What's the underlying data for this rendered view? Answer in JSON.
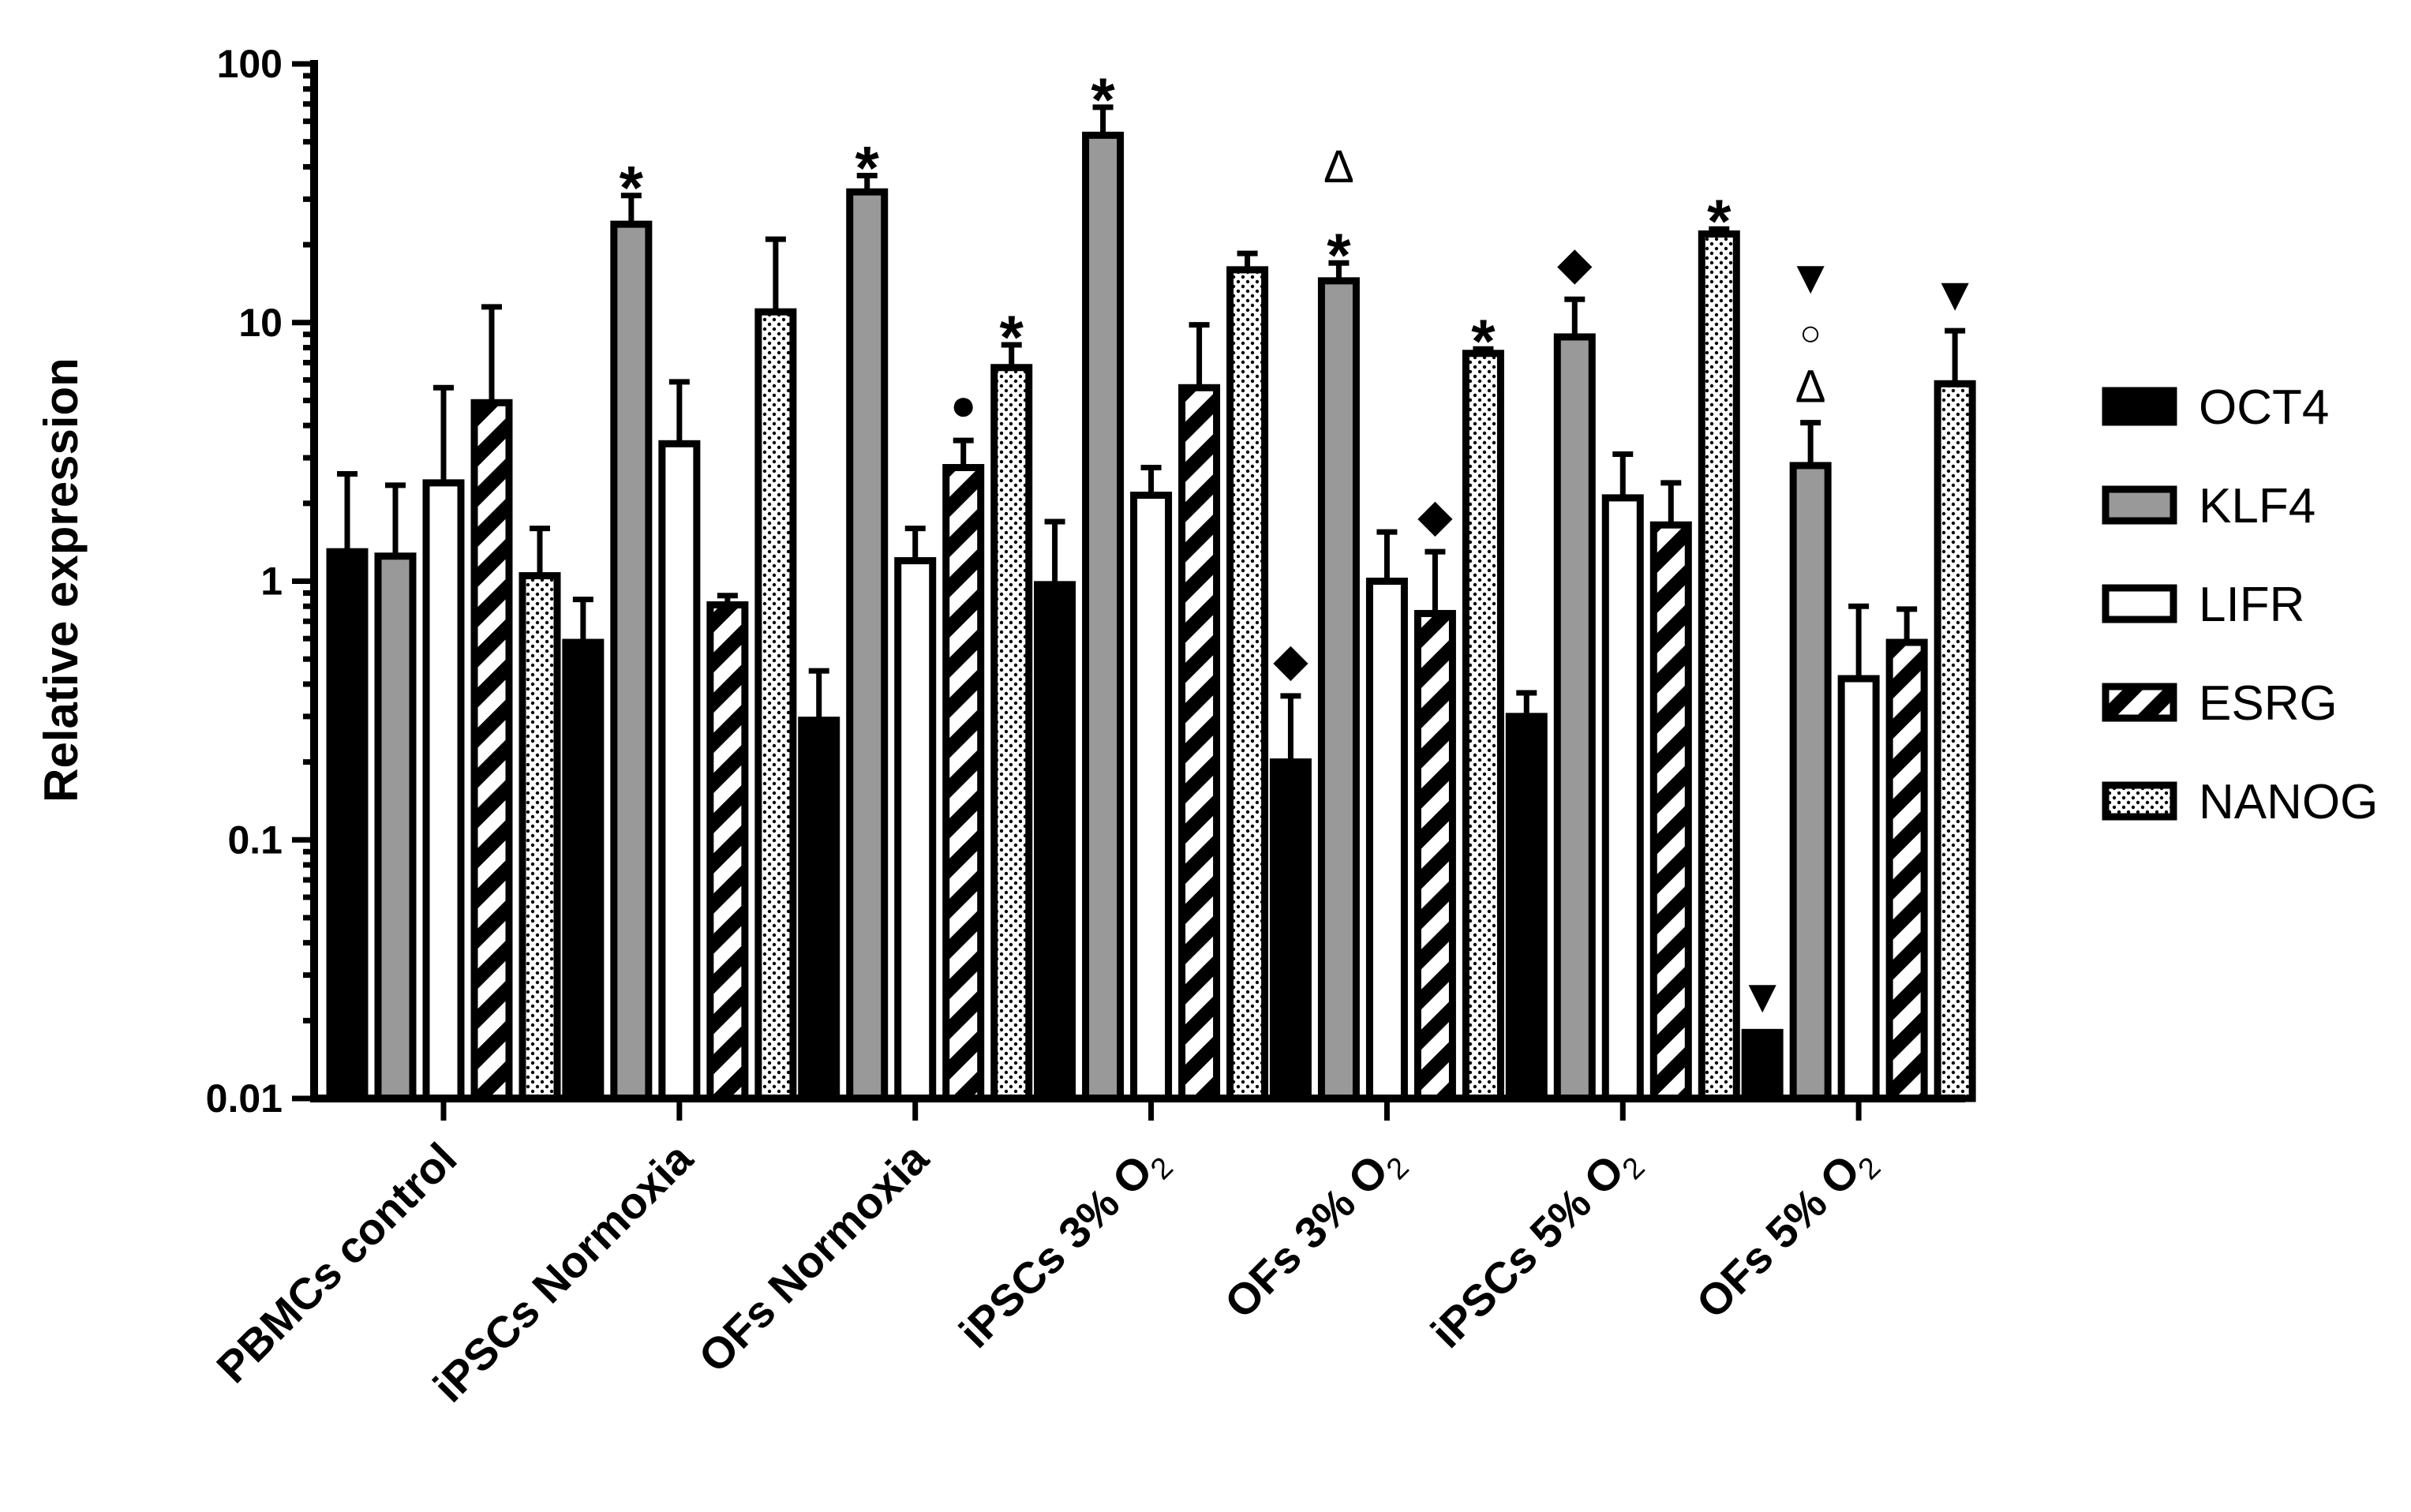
{
  "chart_data": {
    "type": "bar",
    "yscale": "log",
    "ylabel": "Relative expression",
    "xlabel": "",
    "ylim": [
      0.01,
      100
    ],
    "yticks": [
      {
        "value": 100,
        "label": "100"
      },
      {
        "value": 10,
        "label": "10"
      },
      {
        "value": 1,
        "label": "1"
      },
      {
        "value": 0.1,
        "label": "0.1"
      },
      {
        "value": 0.01,
        "label": "0.01"
      }
    ],
    "categories": [
      {
        "text": "PBMCs control",
        "sub": ""
      },
      {
        "text": "iPSCs Normoxia",
        "sub": ""
      },
      {
        "text": "OFs Normoxia",
        "sub": ""
      },
      {
        "text": "iPSCs 3% O",
        "sub": "2"
      },
      {
        "text": "OFs 3% O",
        "sub": "2"
      },
      {
        "text": "iPSCs 5% O",
        "sub": "2"
      },
      {
        "text": "OFs 5% O",
        "sub": "2"
      }
    ],
    "series": [
      {
        "name": "OCT4",
        "pattern": "solid-black",
        "values": [
          1.3,
          0.58,
          0.29,
          0.97,
          0.2,
          0.3,
          0.018
        ],
        "err": [
          2.6,
          0.85,
          0.45,
          1.7,
          0.36,
          0.37,
          0.018
        ]
      },
      {
        "name": "KLF4",
        "pattern": "solid-gray",
        "values": [
          1.25,
          24,
          32,
          53,
          14.5,
          8.8,
          2.8
        ],
        "err": [
          2.35,
          31,
          37,
          68,
          17,
          12.3,
          4.1
        ]
      },
      {
        "name": "LIFR",
        "pattern": "white",
        "values": [
          2.4,
          3.4,
          1.2,
          2.15,
          1.0,
          2.1,
          0.42
        ],
        "err": [
          5.6,
          5.9,
          1.6,
          2.75,
          1.55,
          3.1,
          0.8
        ]
      },
      {
        "name": "ESRG",
        "pattern": "diagonal-stripes",
        "values": [
          4.9,
          0.81,
          2.75,
          5.6,
          0.75,
          1.65,
          0.58
        ],
        "err": [
          11.5,
          0.88,
          3.5,
          9.8,
          1.3,
          2.4,
          0.78
        ]
      },
      {
        "name": "NANOG",
        "pattern": "dotted",
        "values": [
          1.05,
          11,
          6.7,
          16,
          7.6,
          22,
          5.8
        ],
        "err": [
          1.6,
          21,
          8.2,
          18.5,
          7.9,
          23,
          9.3
        ]
      }
    ],
    "annotations": [
      {
        "category": 1,
        "series": 1,
        "symbols": [
          "*"
        ]
      },
      {
        "category": 2,
        "series": 1,
        "symbols": [
          "*"
        ]
      },
      {
        "category": 2,
        "series": 3,
        "symbols": [
          "●"
        ]
      },
      {
        "category": 2,
        "series": 4,
        "symbols": [
          "*"
        ]
      },
      {
        "category": 3,
        "series": 1,
        "symbols": [
          "*"
        ]
      },
      {
        "category": 4,
        "series": 0,
        "symbols": [
          "◆"
        ]
      },
      {
        "category": 4,
        "series": 1,
        "symbols": [
          "*",
          "Δ"
        ]
      },
      {
        "category": 4,
        "series": 3,
        "symbols": [
          "◆"
        ]
      },
      {
        "category": 4,
        "series": 4,
        "symbols": [
          "*"
        ]
      },
      {
        "category": 5,
        "series": 1,
        "symbols": [
          "◆"
        ]
      },
      {
        "category": 5,
        "series": 4,
        "symbols": [
          "*"
        ]
      },
      {
        "category": 6,
        "series": 0,
        "symbols": [
          "▼"
        ]
      },
      {
        "category": 6,
        "series": 1,
        "symbols": [
          "Δ",
          "○",
          "▼"
        ]
      },
      {
        "category": 6,
        "series": 4,
        "symbols": [
          "▼"
        ]
      }
    ],
    "legend_position": "right"
  }
}
